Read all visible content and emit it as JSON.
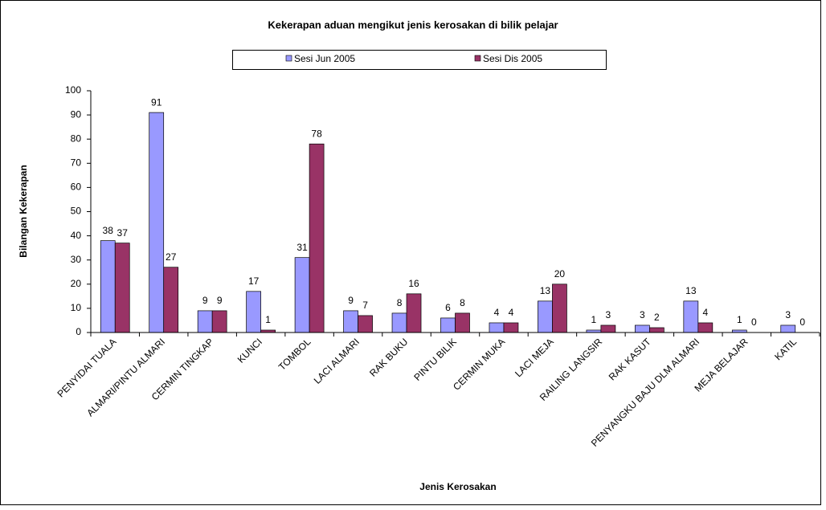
{
  "chart_data": {
    "type": "bar",
    "title": "Kekerapan aduan mengikut jenis kerosakan di bilik pelajar",
    "x_label": "Jenis Kerosakan",
    "y_label": "Bilangan Kekerapan",
    "categories": [
      "PENYIDAI TUALA",
      "ALMARI/PINTU ALMARI",
      "CERMIN TINGKAP",
      "KUNCI",
      "TOMBOL",
      "LACI ALMARI",
      "RAK BUKU",
      "PINTU BILIK",
      "CERMIN MUKA",
      "LACI MEJA",
      "RAILING LANGSIR",
      "RAK KASUT",
      "PENYANGKU BAJU DLM ALMARI",
      "MEJA BELAJAR",
      "KATIL"
    ],
    "series": [
      {
        "name": "Sesi Jun 2005",
        "color": "#9999ff",
        "values": [
          38,
          91,
          9,
          17,
          31,
          9,
          8,
          6,
          4,
          13,
          1,
          3,
          13,
          1,
          3
        ]
      },
      {
        "name": "Sesi Dis 2005",
        "color": "#993366",
        "values": [
          37,
          27,
          9,
          1,
          78,
          7,
          16,
          8,
          4,
          20,
          3,
          2,
          4,
          0,
          0
        ]
      }
    ],
    "ylim": [
      0,
      100
    ],
    "yticks": [
      0,
      10,
      20,
      30,
      40,
      50,
      60,
      70,
      80,
      90,
      100
    ],
    "grid": false,
    "legend": "top"
  }
}
